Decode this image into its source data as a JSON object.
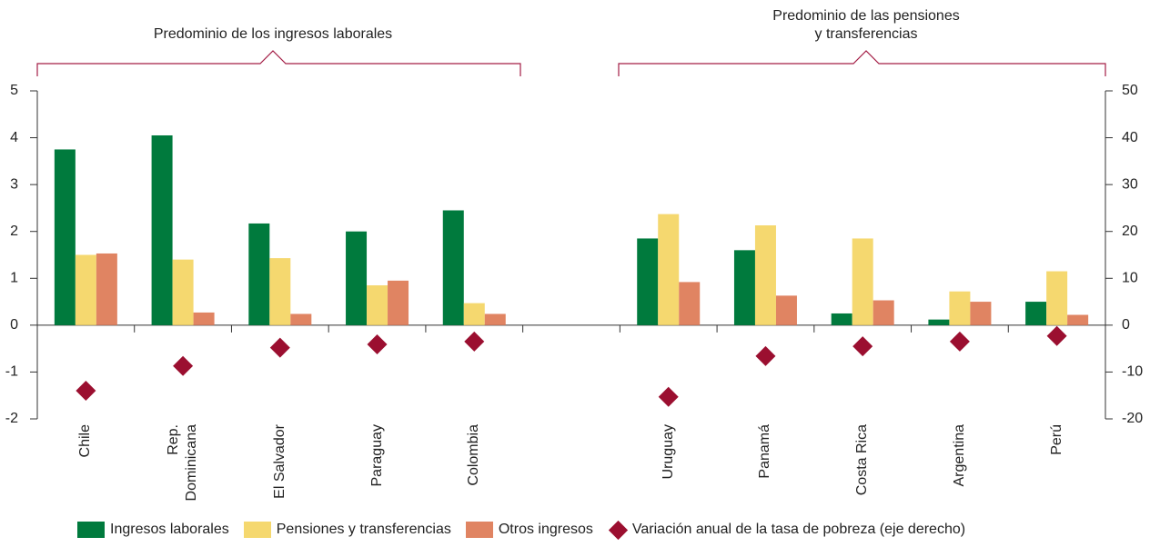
{
  "chart_data": {
    "type": "bar",
    "annotations": [
      "Predominio de los ingresos laborales",
      "Predominio de las pensiones\ny transferencias"
    ],
    "categories": [
      "Chile",
      "Rep.\nDominicana",
      "El Salvador",
      "Paraguay",
      "Colombia",
      null,
      "Uruguay",
      "Panamá",
      "Costa Rica",
      "Argentina",
      "Perú"
    ],
    "series": [
      {
        "name": "Ingresos laborales",
        "color": "#007a3d",
        "values": [
          3.75,
          4.05,
          2.17,
          2.0,
          2.45,
          null,
          1.85,
          1.6,
          0.25,
          0.12,
          0.5
        ]
      },
      {
        "name": "Pensiones y transferencias",
        "color": "#f5d86f",
        "values": [
          1.5,
          1.4,
          1.43,
          0.85,
          0.47,
          null,
          2.37,
          2.13,
          1.85,
          0.72,
          1.15
        ]
      },
      {
        "name": "Otros ingresos",
        "color": "#e08462",
        "values": [
          1.53,
          0.27,
          0.24,
          0.95,
          0.24,
          null,
          0.92,
          0.63,
          0.53,
          0.5,
          0.22
        ]
      },
      {
        "name": "Variación anual de la tasa de pobreza (eje derecho)",
        "color": "#9b0f30",
        "axis": "y2",
        "marker": "diamond",
        "values": [
          -14,
          -8.7,
          -4.8,
          -4.1,
          -3.5,
          null,
          -15.3,
          -6.6,
          -4.5,
          -3.5,
          -2.3
        ]
      }
    ],
    "ylim": [
      -2,
      5
    ],
    "yticks": [
      -2,
      -1,
      0,
      1,
      2,
      3,
      4,
      5
    ],
    "y2lim": [
      -20,
      50
    ],
    "y2ticks": [
      -20,
      -10,
      0,
      10,
      20,
      30,
      40,
      50
    ],
    "grid": false
  }
}
